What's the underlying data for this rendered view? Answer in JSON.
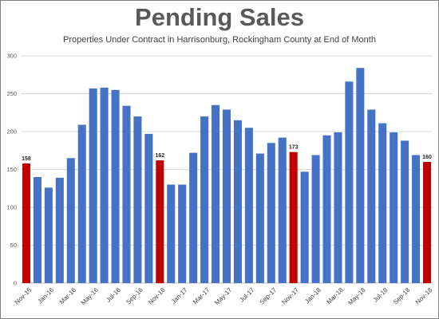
{
  "chart_data": {
    "type": "bar",
    "title": "Pending Sales",
    "subtitle": "Properties Under Contract in Harrisonburg, Rockingham County at End of Month",
    "categories": [
      "Nov-15",
      "Dec-15",
      "Jan-16",
      "Feb-16",
      "Mar-16",
      "Apr-16",
      "May-16",
      "Jun-16",
      "Jul-16",
      "Aug-16",
      "Sep-16",
      "Oct-16",
      "Nov-16",
      "Dec-16",
      "Jan-17",
      "Feb-17",
      "Mar-17",
      "Apr-17",
      "May-17",
      "Jun-17",
      "Jul-17",
      "Aug-17",
      "Sep-17",
      "Oct-17",
      "Nov-17",
      "Dec-17",
      "Jan-18",
      "Feb-18",
      "Mar-18",
      "Apr-18",
      "May-18",
      "Jun-18",
      "Jul-18",
      "Aug-18",
      "Sep-18",
      "Oct-18",
      "Nov-18"
    ],
    "values": [
      158,
      140,
      126,
      139,
      165,
      209,
      257,
      258,
      255,
      234,
      220,
      197,
      162,
      130,
      130,
      172,
      220,
      235,
      229,
      215,
      205,
      171,
      185,
      192,
      173,
      147,
      169,
      195,
      199,
      266,
      284,
      229,
      211,
      199,
      188,
      169,
      160
    ],
    "highlight_categories": [
      "Nov-15",
      "Nov-16",
      "Nov-17",
      "Nov-18"
    ],
    "data_labels": {
      "Nov-15": "158",
      "Nov-16": "162",
      "Nov-17": "173",
      "Nov-18": "160"
    },
    "x_tick_labels": [
      "Nov-15",
      "Jan-16",
      "Mar-16",
      "May-16",
      "Jul-16",
      "Sep-16",
      "Nov-16",
      "Jan-17",
      "Mar-17",
      "May-17",
      "Jul-17",
      "Sep-17",
      "Nov-17",
      "Jan-18",
      "Mar-18",
      "May-18",
      "Jul-18",
      "Sep-18",
      "Nov-18"
    ],
    "y_ticks": [
      "0",
      "50",
      "100",
      "150",
      "200",
      "250",
      "300"
    ],
    "ylim": [
      0,
      300
    ],
    "grid": true,
    "legend": "none",
    "colors": {
      "bar": "#4472c4",
      "highlight": "#c00000",
      "grid": "#d9d9d9"
    }
  }
}
